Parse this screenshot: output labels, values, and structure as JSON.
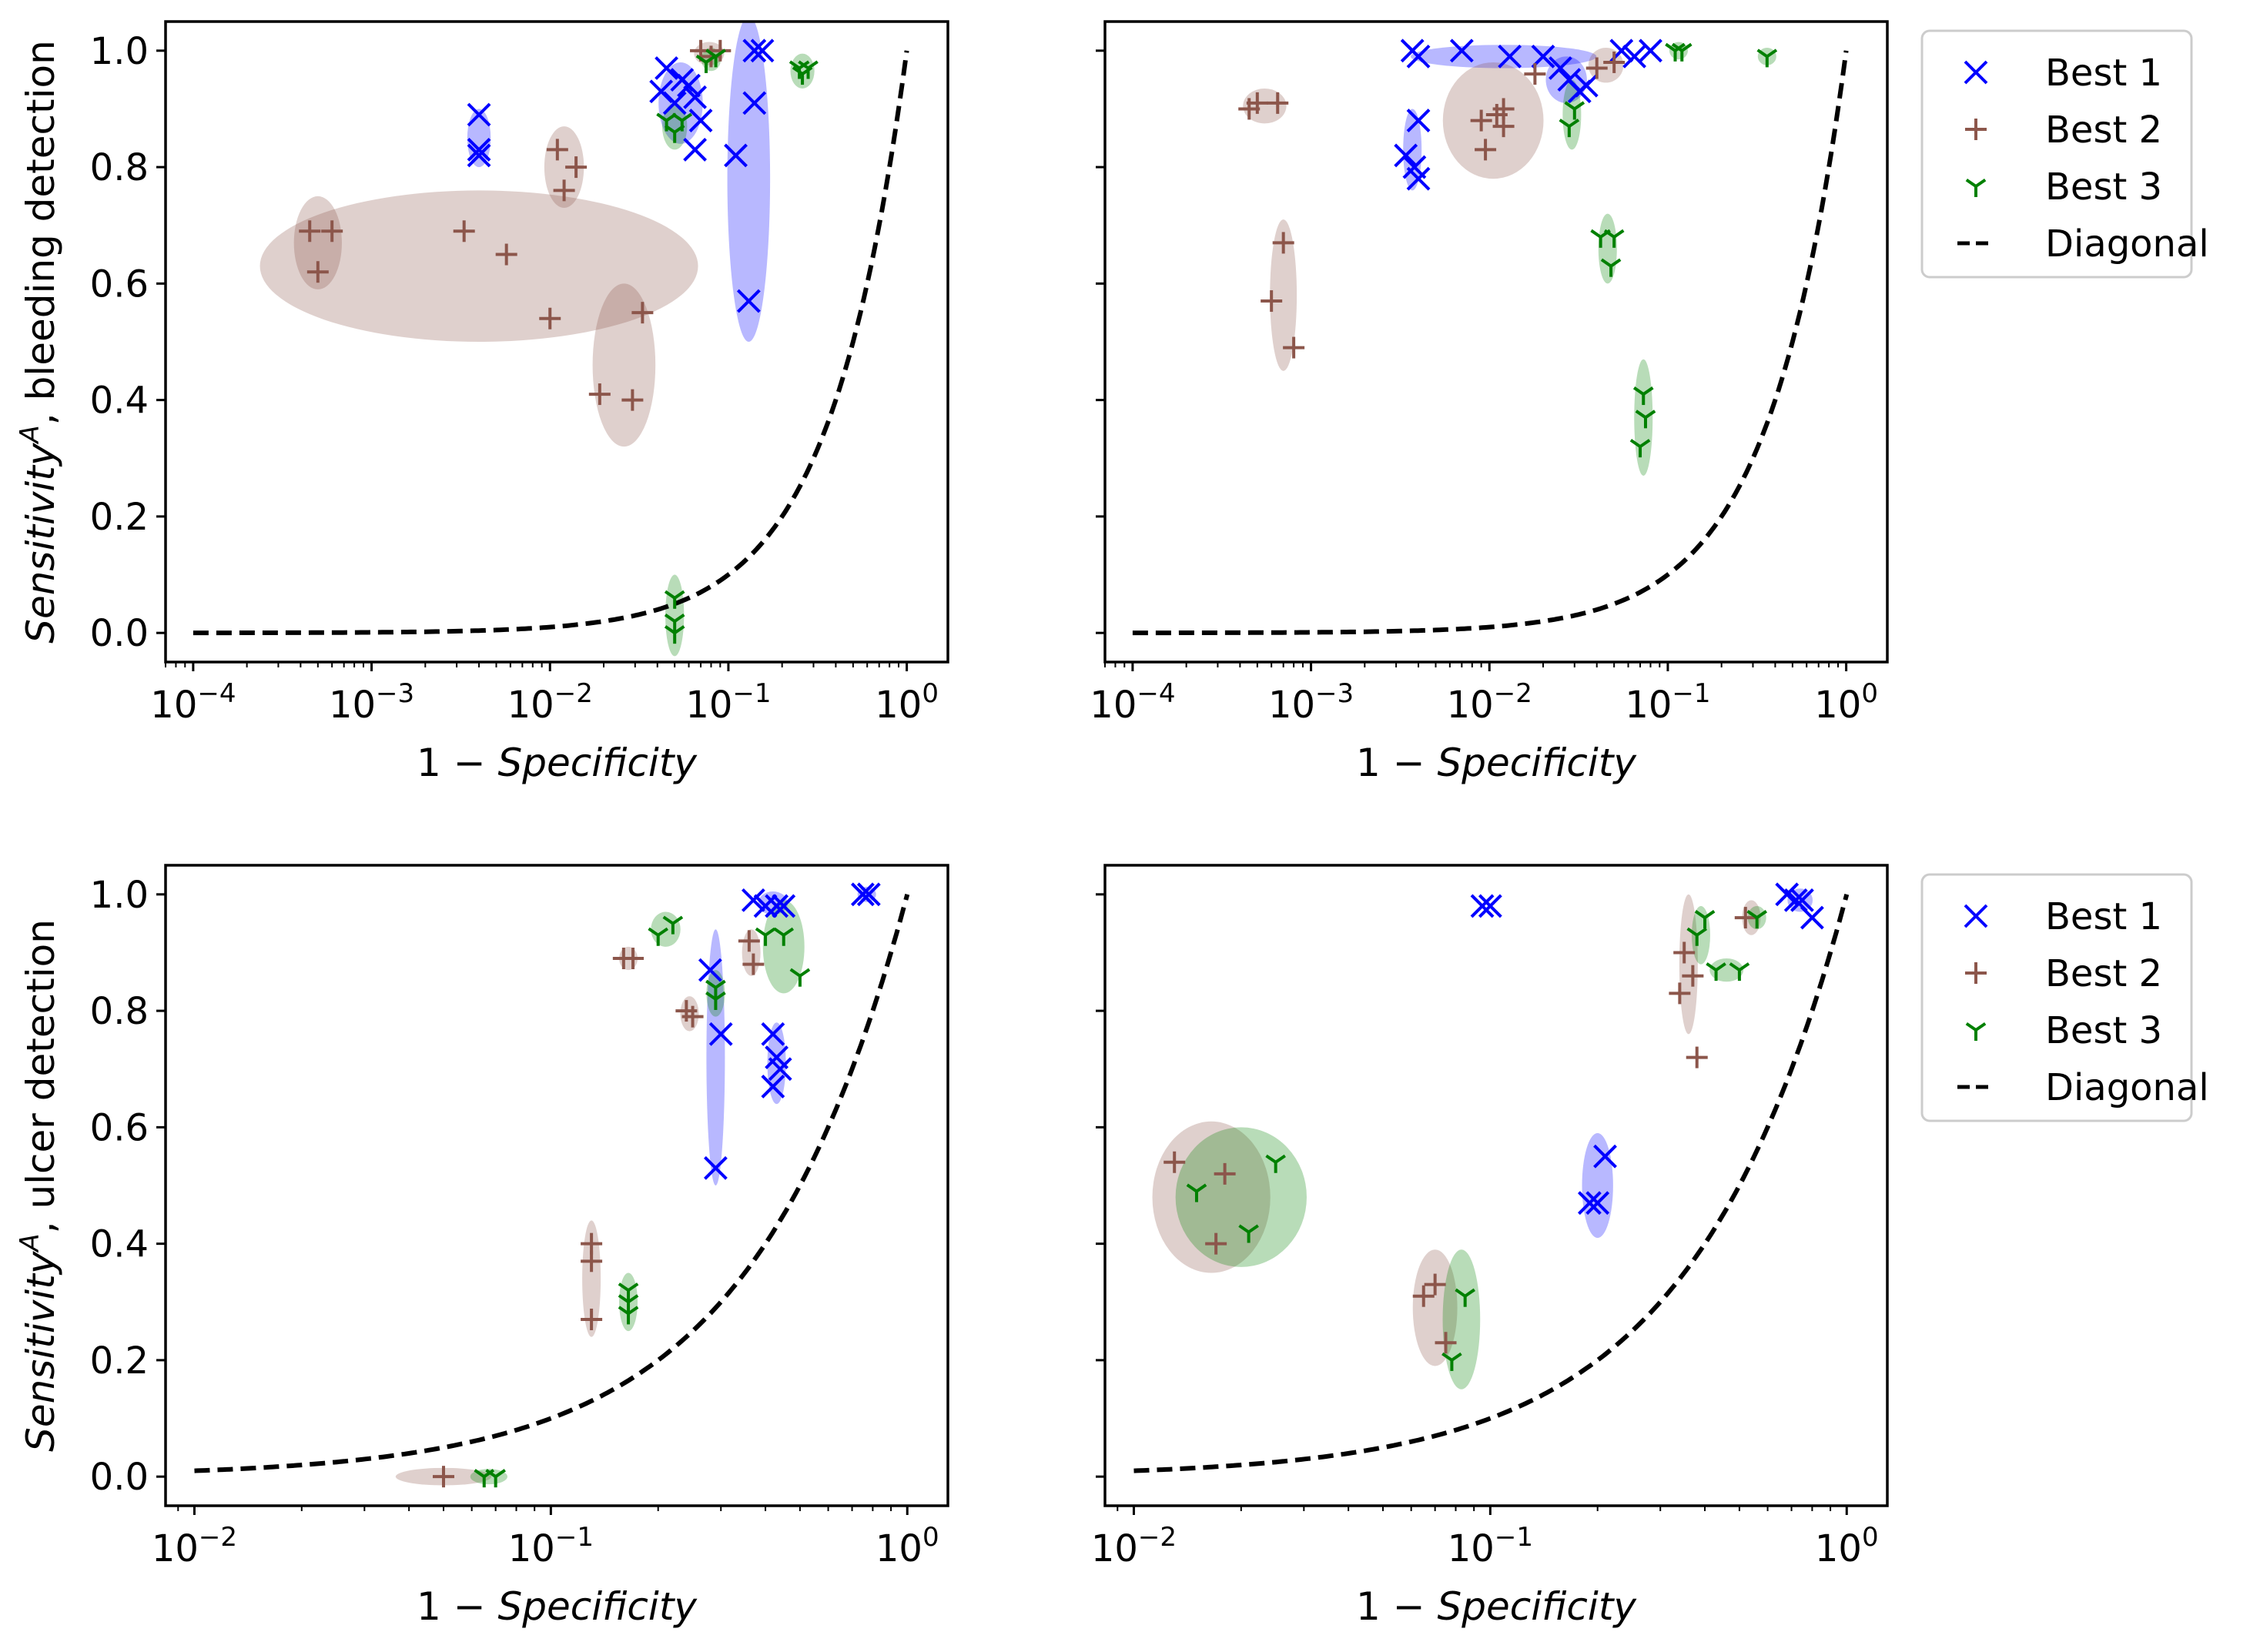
{
  "colors": {
    "best1": "#0000ff",
    "best2": "#8c564b",
    "best3": "#008000",
    "diagonal": "#000000"
  },
  "legend": [
    {
      "name": "Best 1",
      "marker": "x"
    },
    {
      "name": "Best 2",
      "marker": "plus"
    },
    {
      "name": "Best 3",
      "marker": "tri"
    },
    {
      "name": "Diagonal",
      "marker": "dash"
    }
  ],
  "labels": {
    "xlabel": "1 − Specificity",
    "ylabel_top": "Sensitivity^A, bleeding detection",
    "ylabel_bottom": "Sensitivity^A, ulcer detection"
  },
  "chart_data": [
    {
      "type": "scatter",
      "id": "top-left",
      "xscale": "log",
      "xlim": [
        7e-05,
        1.7
      ],
      "ylim": [
        -0.05,
        1.05
      ],
      "xticks": [
        "1e-4",
        "1e-3",
        "1e-2",
        "1e-1",
        "1e0"
      ],
      "yticks": [
        0.0,
        0.2,
        0.4,
        0.6,
        0.8,
        1.0
      ],
      "xlabel": "1 − Specificity",
      "ylabel": "Sensitivity^A, bleeding detection",
      "diagonal": true,
      "series": [
        {
          "name": "Best 1",
          "points": [
            [
              0.004,
              0.89
            ],
            [
              0.004,
              0.83
            ],
            [
              0.004,
              0.82
            ],
            [
              0.045,
              0.97
            ],
            [
              0.042,
              0.93
            ],
            [
              0.05,
              0.91
            ],
            [
              0.055,
              0.95
            ],
            [
              0.06,
              0.94
            ],
            [
              0.065,
              0.92
            ],
            [
              0.07,
              0.88
            ],
            [
              0.065,
              0.83
            ],
            [
              0.11,
              0.82
            ],
            [
              0.14,
              1.0
            ],
            [
              0.155,
              1.0
            ],
            [
              0.14,
              0.91
            ],
            [
              0.13,
              0.57
            ]
          ],
          "ellipses": [
            [
              0.004,
              0.85,
              0.0006,
              0.05
            ],
            [
              0.054,
              0.91,
              0.015,
              0.07
            ],
            [
              0.13,
              0.78,
              0.035,
              0.28
            ]
          ]
        },
        {
          "name": "Best 2",
          "points": [
            [
              0.00045,
              0.69
            ],
            [
              0.0006,
              0.69
            ],
            [
              0.0005,
              0.62
            ],
            [
              0.0033,
              0.69
            ],
            [
              0.0057,
              0.65
            ],
            [
              0.01,
              0.54
            ],
            [
              0.011,
              0.83
            ],
            [
              0.012,
              0.76
            ],
            [
              0.014,
              0.8
            ],
            [
              0.019,
              0.41
            ],
            [
              0.029,
              0.4
            ],
            [
              0.033,
              0.55
            ],
            [
              0.07,
              1.0
            ],
            [
              0.08,
              0.99
            ],
            [
              0.09,
              1.0
            ]
          ],
          "ellipses": [
            [
              0.0005,
              0.67,
              0.00015,
              0.08
            ],
            [
              0.004,
              0.63,
              0.006,
              0.13
            ],
            [
              0.012,
              0.8,
              0.003,
              0.07
            ],
            [
              0.026,
              0.46,
              0.01,
              0.14
            ],
            [
              0.078,
              0.995,
              0.015,
              0.02
            ]
          ]
        },
        {
          "name": "Best 3",
          "points": [
            [
              0.045,
              0.88
            ],
            [
              0.05,
              0.86
            ],
            [
              0.055,
              0.88
            ],
            [
              0.075,
              0.98
            ],
            [
              0.085,
              0.99
            ],
            [
              0.25,
              0.97
            ],
            [
              0.26,
              0.96
            ],
            [
              0.28,
              0.97
            ],
            [
              0.05,
              0.06
            ],
            [
              0.05,
              0.02
            ],
            [
              0.05,
              0.0
            ]
          ],
          "ellipses": [
            [
              0.05,
              0.87,
              0.008,
              0.04
            ],
            [
              0.08,
              0.985,
              0.01,
              0.02
            ],
            [
              0.26,
              0.965,
              0.04,
              0.03
            ],
            [
              0.05,
              0.03,
              0.006,
              0.07
            ]
          ]
        }
      ]
    },
    {
      "type": "scatter",
      "id": "top-right",
      "xscale": "log",
      "xlim": [
        7e-05,
        1.7
      ],
      "ylim": [
        -0.05,
        1.05
      ],
      "xticks": [
        "1e-4",
        "1e-3",
        "1e-2",
        "1e-1",
        "1e0"
      ],
      "yticks": [
        0.0,
        0.2,
        0.4,
        0.6,
        0.8,
        1.0
      ],
      "xlabel": "1 − Specificity",
      "ylabel": "",
      "diagonal": true,
      "series": [
        {
          "name": "Best 1",
          "points": [
            [
              0.0037,
              1.0
            ],
            [
              0.004,
              0.99
            ],
            [
              0.007,
              1.0
            ],
            [
              0.013,
              0.99
            ],
            [
              0.02,
              0.99
            ],
            [
              0.025,
              0.97
            ],
            [
              0.028,
              0.95
            ],
            [
              0.032,
              0.93
            ],
            [
              0.035,
              0.94
            ],
            [
              0.055,
              1.0
            ],
            [
              0.065,
              0.99
            ],
            [
              0.08,
              1.0
            ],
            [
              0.0034,
              0.82
            ],
            [
              0.004,
              0.88
            ],
            [
              0.0038,
              0.8
            ],
            [
              0.004,
              0.78
            ]
          ],
          "ellipses": [
            [
              0.012,
              0.99,
              0.01,
              0.02
            ],
            [
              0.027,
              0.95,
              0.007,
              0.04
            ],
            [
              0.0037,
              0.83,
              0.0004,
              0.07
            ]
          ]
        },
        {
          "name": "Best 2",
          "points": [
            [
              0.00045,
              0.9
            ],
            [
              0.0005,
              0.91
            ],
            [
              0.00065,
              0.91
            ],
            [
              0.009,
              0.88
            ],
            [
              0.0095,
              0.83
            ],
            [
              0.011,
              0.89
            ],
            [
              0.012,
              0.9
            ],
            [
              0.012,
              0.87
            ],
            [
              0.018,
              0.96
            ],
            [
              0.04,
              0.97
            ],
            [
              0.05,
              0.98
            ],
            [
              0.0007,
              0.67
            ],
            [
              0.0006,
              0.57
            ],
            [
              0.0008,
              0.49
            ]
          ],
          "ellipses": [
            [
              0.00055,
              0.905,
              0.00015,
              0.03
            ],
            [
              0.0105,
              0.88,
              0.006,
              0.1
            ],
            [
              0.045,
              0.975,
              0.01,
              0.03
            ],
            [
              0.0007,
              0.58,
              0.00012,
              0.13
            ]
          ]
        },
        {
          "name": "Best 3",
          "points": [
            [
              0.028,
              0.87
            ],
            [
              0.03,
              0.9
            ],
            [
              0.042,
              0.68
            ],
            [
              0.05,
              0.68
            ],
            [
              0.048,
              0.63
            ],
            [
              0.073,
              0.41
            ],
            [
              0.075,
              0.37
            ],
            [
              0.07,
              0.32
            ],
            [
              0.11,
              1.0
            ],
            [
              0.12,
              1.0
            ],
            [
              0.36,
              0.99
            ]
          ],
          "ellipses": [
            [
              0.029,
              0.89,
              0.0025,
              0.06
            ],
            [
              0.046,
              0.66,
              0.005,
              0.06
            ],
            [
              0.073,
              0.37,
              0.004,
              0.1
            ],
            [
              0.115,
              1.0,
              0.01,
              0.015
            ],
            [
              0.36,
              0.99,
              0.03,
              0.015
            ]
          ]
        }
      ]
    },
    {
      "type": "scatter",
      "id": "bottom-left",
      "xscale": "log",
      "xlim": [
        0.0083,
        1.3
      ],
      "ylim": [
        -0.05,
        1.05
      ],
      "xticks": [
        "1e-2",
        "1e-1",
        "1e0"
      ],
      "yticks": [
        0.0,
        0.2,
        0.4,
        0.6,
        0.8,
        1.0
      ],
      "xlabel": "1 − Specificity",
      "ylabel": "Sensitivity^A, ulcer detection",
      "diagonal": true,
      "series": [
        {
          "name": "Best 1",
          "points": [
            [
              0.28,
              0.87
            ],
            [
              0.3,
              0.76
            ],
            [
              0.29,
              0.53
            ],
            [
              0.37,
              0.99
            ],
            [
              0.4,
              0.98
            ],
            [
              0.43,
              0.98
            ],
            [
              0.45,
              0.98
            ],
            [
              0.75,
              1.0
            ],
            [
              0.78,
              1.0
            ],
            [
              0.42,
              0.76
            ],
            [
              0.43,
              0.72
            ],
            [
              0.44,
              0.7
            ],
            [
              0.42,
              0.67
            ]
          ],
          "ellipses": [
            [
              0.29,
              0.72,
              0.012,
              0.22
            ],
            [
              0.42,
              0.985,
              0.04,
              0.02
            ],
            [
              0.77,
              1.0,
              0.03,
              0.01
            ],
            [
              0.43,
              0.71,
              0.015,
              0.07
            ]
          ]
        },
        {
          "name": "Best 2",
          "points": [
            [
              0.05,
              0.0
            ],
            [
              0.16,
              0.89
            ],
            [
              0.17,
              0.89
            ],
            [
              0.24,
              0.8
            ],
            [
              0.25,
              0.79
            ],
            [
              0.36,
              0.92
            ],
            [
              0.37,
              0.88
            ],
            [
              0.13,
              0.4
            ],
            [
              0.13,
              0.37
            ],
            [
              0.13,
              0.27
            ]
          ],
          "ellipses": [
            [
              0.05,
              0.0,
              0.015,
              0.015
            ],
            [
              0.165,
              0.89,
              0.008,
              0.02
            ],
            [
              0.245,
              0.795,
              0.008,
              0.03
            ],
            [
              0.365,
              0.9,
              0.01,
              0.04
            ],
            [
              0.13,
              0.34,
              0.003,
              0.1
            ]
          ]
        },
        {
          "name": "Best 3",
          "points": [
            [
              0.065,
              0.0
            ],
            [
              0.07,
              0.0
            ],
            [
              0.2,
              0.93
            ],
            [
              0.22,
              0.95
            ],
            [
              0.29,
              0.84
            ],
            [
              0.29,
              0.82
            ],
            [
              0.4,
              0.93
            ],
            [
              0.45,
              0.93
            ],
            [
              0.5,
              0.86
            ],
            [
              0.165,
              0.32
            ],
            [
              0.165,
              0.3
            ],
            [
              0.165,
              0.28
            ]
          ],
          "ellipses": [
            [
              0.067,
              0.0,
              0.008,
              0.01
            ],
            [
              0.21,
              0.94,
              0.02,
              0.03
            ],
            [
              0.29,
              0.83,
              0.008,
              0.04
            ],
            [
              0.45,
              0.91,
              0.06,
              0.08
            ],
            [
              0.165,
              0.3,
              0.003,
              0.05
            ]
          ]
        }
      ]
    },
    {
      "type": "scatter",
      "id": "bottom-right",
      "xscale": "log",
      "xlim": [
        0.0083,
        1.3
      ],
      "ylim": [
        -0.05,
        1.05
      ],
      "xticks": [
        "1e-2",
        "1e-1",
        "1e0"
      ],
      "yticks": [
        0.0,
        0.2,
        0.4,
        0.6,
        0.8,
        1.0
      ],
      "xlabel": "1 − Specificity",
      "ylabel": "",
      "diagonal": true,
      "series": [
        {
          "name": "Best 1",
          "points": [
            [
              0.095,
              0.98
            ],
            [
              0.1,
              0.98
            ],
            [
              0.68,
              1.0
            ],
            [
              0.72,
              0.99
            ],
            [
              0.75,
              0.99
            ],
            [
              0.8,
              0.96
            ],
            [
              0.21,
              0.55
            ],
            [
              0.19,
              0.47
            ],
            [
              0.2,
              0.47
            ]
          ],
          "ellipses": [
            [
              0.2,
              0.5,
              0.02,
              0.09
            ],
            [
              0.74,
              0.99,
              0.06,
              0.02
            ]
          ]
        },
        {
          "name": "Best 2",
          "points": [
            [
              0.34,
              0.83
            ],
            [
              0.35,
              0.9
            ],
            [
              0.37,
              0.86
            ],
            [
              0.38,
              0.72
            ],
            [
              0.52,
              0.96
            ],
            [
              0.013,
              0.54
            ],
            [
              0.018,
              0.52
            ],
            [
              0.017,
              0.4
            ],
            [
              0.07,
              0.33
            ],
            [
              0.065,
              0.31
            ],
            [
              0.075,
              0.23
            ]
          ],
          "ellipses": [
            [
              0.36,
              0.88,
              0.02,
              0.12
            ],
            [
              0.54,
              0.96,
              0.02,
              0.03
            ],
            [
              0.0165,
              0.48,
              0.006,
              0.13
            ],
            [
              0.07,
              0.29,
              0.01,
              0.1
            ]
          ]
        },
        {
          "name": "Best 3",
          "points": [
            [
              0.38,
              0.93
            ],
            [
              0.4,
              0.96
            ],
            [
              0.43,
              0.87
            ],
            [
              0.5,
              0.87
            ],
            [
              0.56,
              0.96
            ],
            [
              0.015,
              0.49
            ],
            [
              0.021,
              0.42
            ],
            [
              0.025,
              0.54
            ],
            [
              0.085,
              0.31
            ],
            [
              0.078,
              0.2
            ]
          ],
          "ellipses": [
            [
              0.39,
              0.93,
              0.012,
              0.05
            ],
            [
              0.46,
              0.87,
              0.05,
              0.02
            ],
            [
              0.56,
              0.96,
              0.015,
              0.02
            ],
            [
              0.02,
              0.48,
              0.008,
              0.12
            ],
            [
              0.083,
              0.27,
              0.01,
              0.12
            ]
          ]
        }
      ]
    }
  ]
}
